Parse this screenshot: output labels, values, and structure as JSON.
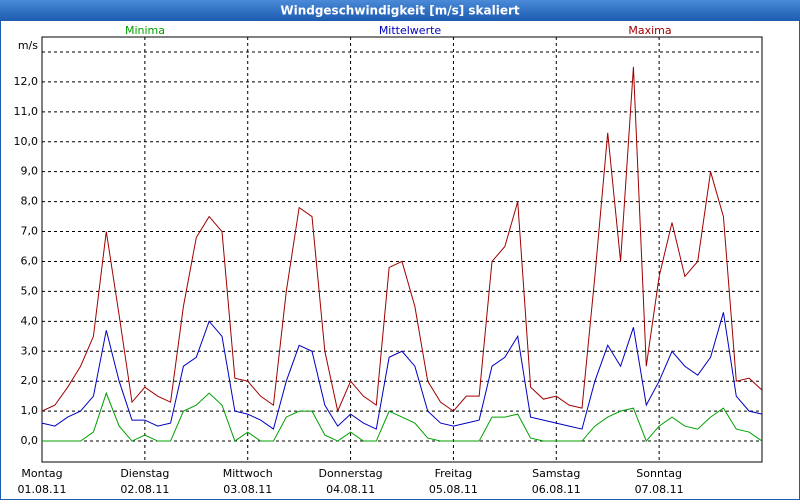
{
  "window_title": "Windgeschwindigkeit [m/s] skaliert",
  "chart_data": {
    "type": "line",
    "y_unit": "m/s",
    "x": [
      0,
      3,
      6,
      9,
      12,
      15,
      18,
      21,
      24,
      27,
      30,
      33,
      36,
      39,
      42,
      45,
      48,
      51,
      54,
      57,
      60,
      63,
      66,
      69,
      72,
      75,
      78,
      81,
      84,
      87,
      90,
      93,
      96,
      99,
      102,
      105,
      108,
      111,
      114,
      117,
      120,
      123,
      126,
      129,
      132,
      135,
      138,
      141,
      144,
      147,
      150,
      153,
      156,
      159,
      162,
      165,
      168
    ],
    "xlim": [
      0,
      168
    ],
    "xticks": [
      {
        "value": 0,
        "label": "Montag",
        "date": "01.08.11"
      },
      {
        "value": 24,
        "label": "Dienstag",
        "date": "02.08.11"
      },
      {
        "value": 48,
        "label": "Mittwoch",
        "date": "03.08.11"
      },
      {
        "value": 72,
        "label": "Donnerstag",
        "date": "04.08.11"
      },
      {
        "value": 96,
        "label": "Freitag",
        "date": "05.08.11"
      },
      {
        "value": 120,
        "label": "Samstag",
        "date": "06.08.11"
      },
      {
        "value": 144,
        "label": "Sonntag",
        "date": "07.08.11"
      }
    ],
    "ylim": [
      -0.7,
      13.5
    ],
    "yticks": [
      {
        "value": 0,
        "label": "0,0"
      },
      {
        "value": 1,
        "label": "1,0"
      },
      {
        "value": 2,
        "label": "2,0"
      },
      {
        "value": 3,
        "label": "3,0"
      },
      {
        "value": 4,
        "label": "4,0"
      },
      {
        "value": 5,
        "label": "5,0"
      },
      {
        "value": 6,
        "label": "6,0"
      },
      {
        "value": 7,
        "label": "7,0"
      },
      {
        "value": 8,
        "label": "8,0"
      },
      {
        "value": 9,
        "label": "9,0"
      },
      {
        "value": 10,
        "label": "10,0"
      },
      {
        "value": 11,
        "label": "11,0"
      },
      {
        "value": 12,
        "label": "12,0"
      },
      {
        "value": 13,
        "label": ""
      }
    ],
    "grid": true,
    "series": [
      {
        "name": "Minima",
        "color": "#00a000",
        "values": [
          0,
          0,
          0,
          0,
          0.3,
          1.6,
          0.5,
          0,
          0.2,
          0,
          0,
          1.0,
          1.2,
          1.6,
          1.2,
          0,
          0.3,
          0,
          0,
          0.8,
          1.0,
          1.0,
          0.2,
          0,
          0.3,
          0,
          0,
          1.0,
          0.8,
          0.6,
          0.1,
          0,
          0,
          0,
          0,
          0.8,
          0.8,
          0.9,
          0.1,
          0,
          0,
          0,
          0,
          0.5,
          0.8,
          1.0,
          1.1,
          0,
          0.5,
          0.8,
          0.5,
          0.4,
          0.8,
          1.1,
          0.4,
          0.3,
          0
        ]
      },
      {
        "name": "Mittelwerte",
        "color": "#0000c0",
        "values": [
          0.6,
          0.5,
          0.8,
          1.0,
          1.5,
          3.7,
          2.0,
          0.7,
          0.7,
          0.5,
          0.6,
          2.5,
          2.8,
          4.0,
          3.5,
          1.0,
          0.9,
          0.7,
          0.4,
          2.0,
          3.2,
          3.0,
          1.2,
          0.5,
          0.9,
          0.6,
          0.4,
          2.8,
          3.0,
          2.5,
          1.0,
          0.6,
          0.5,
          0.6,
          0.7,
          2.5,
          2.8,
          3.5,
          0.8,
          0.7,
          0.6,
          0.5,
          0.4,
          2.0,
          3.2,
          2.5,
          3.8,
          1.2,
          2.0,
          3.0,
          2.5,
          2.2,
          2.8,
          4.3,
          1.5,
          1.0,
          0.9
        ]
      },
      {
        "name": "Maxima",
        "color": "#a00000",
        "values": [
          1.0,
          1.2,
          1.8,
          2.5,
          3.5,
          7.0,
          4.2,
          1.3,
          1.8,
          1.5,
          1.3,
          4.5,
          6.8,
          7.5,
          7.0,
          2.1,
          2.0,
          1.5,
          1.2,
          5.0,
          7.8,
          7.5,
          3.0,
          1.0,
          2.0,
          1.5,
          1.2,
          5.8,
          6.0,
          4.5,
          2.0,
          1.3,
          1.0,
          1.5,
          1.5,
          6.0,
          6.5,
          8.0,
          1.8,
          1.4,
          1.5,
          1.2,
          1.1,
          5.5,
          10.3,
          6.0,
          12.5,
          2.5,
          5.5,
          7.3,
          5.5,
          6.0,
          9.0,
          7.5,
          2.0,
          2.1,
          1.7
        ]
      }
    ]
  }
}
